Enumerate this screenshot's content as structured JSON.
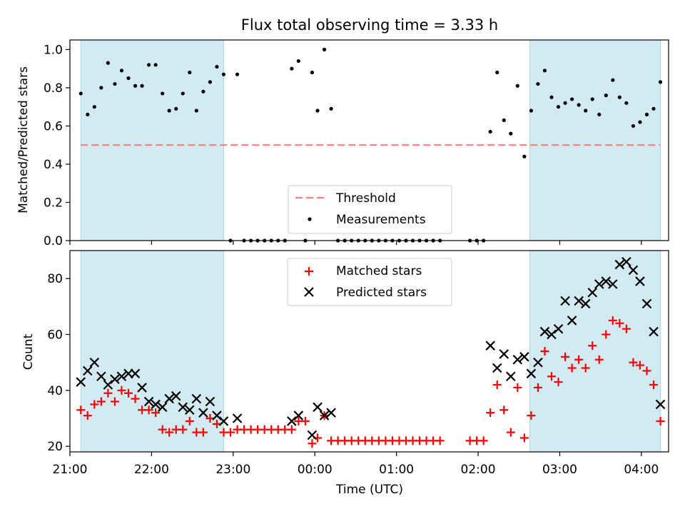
{
  "chart_data": [
    {
      "type": "scatter",
      "title": "Flux total observing time = 3.33 h",
      "ylabel": "Matched/Predicted stars",
      "xlabel": "",
      "xlim": [
        "21:00",
        "04:20"
      ],
      "ylim": [
        0,
        1.05
      ],
      "yticks": [
        "0.0",
        "0.2",
        "0.4",
        "0.6",
        "0.8",
        "1.0"
      ],
      "shaded_regions": [
        [
          "21:08",
          "22:53"
        ],
        [
          "02:38",
          "04:14"
        ]
      ],
      "shade_color": "#add8e6",
      "legend_position": "lower center",
      "threshold": {
        "name": "Threshold",
        "value": 0.5,
        "from": "21:08",
        "to": "04:14",
        "color": "#f08080"
      },
      "series": [
        {
          "name": "Measurements",
          "marker": "dot",
          "color": "#000000",
          "points": [
            [
              "21:08",
              0.77
            ],
            [
              "21:13",
              0.66
            ],
            [
              "21:18",
              0.7
            ],
            [
              "21:23",
              0.8
            ],
            [
              "21:28",
              0.93
            ],
            [
              "21:33",
              0.82
            ],
            [
              "21:38",
              0.89
            ],
            [
              "21:43",
              0.85
            ],
            [
              "21:48",
              0.81
            ],
            [
              "21:53",
              0.81
            ],
            [
              "21:58",
              0.92
            ],
            [
              "22:03",
              0.92
            ],
            [
              "22:08",
              0.77
            ],
            [
              "22:13",
              0.68
            ],
            [
              "22:18",
              0.69
            ],
            [
              "22:23",
              0.77
            ],
            [
              "22:28",
              0.88
            ],
            [
              "22:33",
              0.68
            ],
            [
              "22:38",
              0.78
            ],
            [
              "22:43",
              0.83
            ],
            [
              "22:48",
              0.91
            ],
            [
              "22:53",
              0.87
            ],
            [
              "22:58",
              0.0
            ],
            [
              "23:03",
              0.87
            ],
            [
              "23:08",
              0.0
            ],
            [
              "23:13",
              0.0
            ],
            [
              "23:18",
              0.0
            ],
            [
              "23:23",
              0.0
            ],
            [
              "23:28",
              0.0
            ],
            [
              "23:33",
              0.0
            ],
            [
              "23:38",
              0.0
            ],
            [
              "23:43",
              0.9
            ],
            [
              "23:48",
              0.94
            ],
            [
              "23:53",
              0.0
            ],
            [
              "23:58",
              0.88
            ],
            [
              "00:02",
              0.68
            ],
            [
              "00:07",
              1.0
            ],
            [
              "00:12",
              0.69
            ],
            [
              "00:17",
              0.0
            ],
            [
              "00:22",
              0.0
            ],
            [
              "00:27",
              0.0
            ],
            [
              "00:32",
              0.0
            ],
            [
              "00:37",
              0.0
            ],
            [
              "00:42",
              0.0
            ],
            [
              "00:47",
              0.0
            ],
            [
              "00:52",
              0.0
            ],
            [
              "00:57",
              0.0
            ],
            [
              "01:02",
              0.0
            ],
            [
              "01:07",
              0.0
            ],
            [
              "01:12",
              0.0
            ],
            [
              "01:17",
              0.0
            ],
            [
              "01:22",
              0.0
            ],
            [
              "01:27",
              0.0
            ],
            [
              "01:32",
              0.0
            ],
            [
              "01:54",
              0.0
            ],
            [
              "01:59",
              0.0
            ],
            [
              "02:04",
              0.0
            ],
            [
              "02:09",
              0.57
            ],
            [
              "02:14",
              0.88
            ],
            [
              "02:19",
              0.63
            ],
            [
              "02:24",
              0.56
            ],
            [
              "02:29",
              0.81
            ],
            [
              "02:34",
              0.44
            ],
            [
              "02:39",
              0.68
            ],
            [
              "02:44",
              0.82
            ],
            [
              "02:49",
              0.89
            ],
            [
              "02:54",
              0.75
            ],
            [
              "02:59",
              0.7
            ],
            [
              "03:04",
              0.72
            ],
            [
              "03:09",
              0.74
            ],
            [
              "03:14",
              0.71
            ],
            [
              "03:19",
              0.68
            ],
            [
              "03:24",
              0.74
            ],
            [
              "03:29",
              0.66
            ],
            [
              "03:34",
              0.76
            ],
            [
              "03:39",
              0.84
            ],
            [
              "03:44",
              0.75
            ],
            [
              "03:49",
              0.72
            ],
            [
              "03:54",
              0.6
            ],
            [
              "03:59",
              0.62
            ],
            [
              "04:04",
              0.66
            ],
            [
              "04:09",
              0.69
            ],
            [
              "04:14",
              0.83
            ]
          ]
        }
      ]
    },
    {
      "type": "scatter",
      "title": "",
      "ylabel": "Count",
      "xlabel": "Time (UTC)",
      "xlim": [
        "21:00",
        "04:20"
      ],
      "ylim": [
        18,
        90
      ],
      "yticks": [
        "20",
        "40",
        "60",
        "80"
      ],
      "xticks": [
        "21:00",
        "22:00",
        "23:00",
        "00:00",
        "01:00",
        "02:00",
        "03:00",
        "04:00"
      ],
      "shaded_regions": [
        [
          "21:08",
          "22:53"
        ],
        [
          "02:38",
          "04:14"
        ]
      ],
      "shade_color": "#add8e6",
      "legend_position": "upper center",
      "series": [
        {
          "name": "Matched stars",
          "marker": "plus",
          "color": "#ff0000",
          "points": [
            [
              "21:08",
              33
            ],
            [
              "21:13",
              31
            ],
            [
              "21:18",
              35
            ],
            [
              "21:23",
              36
            ],
            [
              "21:28",
              39
            ],
            [
              "21:33",
              36
            ],
            [
              "21:38",
              40
            ],
            [
              "21:43",
              39
            ],
            [
              "21:48",
              37
            ],
            [
              "21:53",
              33
            ],
            [
              "21:58",
              33
            ],
            [
              "22:03",
              32
            ],
            [
              "22:08",
              26
            ],
            [
              "22:13",
              25
            ],
            [
              "22:18",
              26
            ],
            [
              "22:23",
              26
            ],
            [
              "22:28",
              29
            ],
            [
              "22:33",
              25
            ],
            [
              "22:38",
              25
            ],
            [
              "22:43",
              30
            ],
            [
              "22:48",
              28
            ],
            [
              "22:53",
              25
            ],
            [
              "22:58",
              25
            ],
            [
              "23:03",
              26
            ],
            [
              "23:08",
              26
            ],
            [
              "23:13",
              26
            ],
            [
              "23:18",
              26
            ],
            [
              "23:23",
              26
            ],
            [
              "23:28",
              26
            ],
            [
              "23:33",
              26
            ],
            [
              "23:38",
              26
            ],
            [
              "23:43",
              26
            ],
            [
              "23:48",
              29
            ],
            [
              "23:53",
              29
            ],
            [
              "23:58",
              21
            ],
            [
              "00:02",
              23
            ],
            [
              "00:07",
              31
            ],
            [
              "00:12",
              22
            ],
            [
              "00:17",
              22
            ],
            [
              "00:22",
              22
            ],
            [
              "00:27",
              22
            ],
            [
              "00:32",
              22
            ],
            [
              "00:37",
              22
            ],
            [
              "00:42",
              22
            ],
            [
              "00:47",
              22
            ],
            [
              "00:52",
              22
            ],
            [
              "00:57",
              22
            ],
            [
              "01:02",
              22
            ],
            [
              "01:07",
              22
            ],
            [
              "01:12",
              22
            ],
            [
              "01:17",
              22
            ],
            [
              "01:22",
              22
            ],
            [
              "01:27",
              22
            ],
            [
              "01:32",
              22
            ],
            [
              "01:54",
              22
            ],
            [
              "01:59",
              22
            ],
            [
              "02:04",
              22
            ],
            [
              "02:09",
              32
            ],
            [
              "02:14",
              42
            ],
            [
              "02:19",
              33
            ],
            [
              "02:24",
              25
            ],
            [
              "02:29",
              41
            ],
            [
              "02:34",
              23
            ],
            [
              "02:39",
              31
            ],
            [
              "02:44",
              41
            ],
            [
              "02:49",
              54
            ],
            [
              "02:54",
              45
            ],
            [
              "02:59",
              43
            ],
            [
              "03:04",
              52
            ],
            [
              "03:09",
              48
            ],
            [
              "03:14",
              51
            ],
            [
              "03:19",
              48
            ],
            [
              "03:24",
              56
            ],
            [
              "03:29",
              51
            ],
            [
              "03:34",
              60
            ],
            [
              "03:39",
              65
            ],
            [
              "03:44",
              64
            ],
            [
              "03:49",
              62
            ],
            [
              "03:54",
              50
            ],
            [
              "03:59",
              49
            ],
            [
              "04:04",
              47
            ],
            [
              "04:09",
              42
            ],
            [
              "04:14",
              29
            ]
          ]
        },
        {
          "name": "Predicted stars",
          "marker": "x",
          "color": "#000000",
          "points": [
            [
              "21:08",
              43
            ],
            [
              "21:13",
              47
            ],
            [
              "21:18",
              50
            ],
            [
              "21:23",
              45
            ],
            [
              "21:28",
              42
            ],
            [
              "21:33",
              44
            ],
            [
              "21:38",
              45
            ],
            [
              "21:43",
              46
            ],
            [
              "21:48",
              46
            ],
            [
              "21:53",
              41
            ],
            [
              "21:58",
              36
            ],
            [
              "22:03",
              35
            ],
            [
              "22:08",
              34
            ],
            [
              "22:13",
              37
            ],
            [
              "22:18",
              38
            ],
            [
              "22:23",
              34
            ],
            [
              "22:28",
              33
            ],
            [
              "22:33",
              37
            ],
            [
              "22:38",
              32
            ],
            [
              "22:43",
              36
            ],
            [
              "22:48",
              31
            ],
            [
              "22:53",
              29
            ],
            [
              "23:03",
              30
            ],
            [
              "23:43",
              29
            ],
            [
              "23:48",
              31
            ],
            [
              "23:58",
              24
            ],
            [
              "00:02",
              34
            ],
            [
              "00:07",
              31
            ],
            [
              "00:12",
              32
            ],
            [
              "02:09",
              56
            ],
            [
              "02:14",
              48
            ],
            [
              "02:19",
              53
            ],
            [
              "02:24",
              45
            ],
            [
              "02:29",
              51
            ],
            [
              "02:34",
              52
            ],
            [
              "02:39",
              46
            ],
            [
              "02:44",
              50
            ],
            [
              "02:49",
              61
            ],
            [
              "02:54",
              60
            ],
            [
              "02:59",
              62
            ],
            [
              "03:04",
              72
            ],
            [
              "03:09",
              65
            ],
            [
              "03:14",
              72
            ],
            [
              "03:19",
              71
            ],
            [
              "03:24",
              75
            ],
            [
              "03:29",
              78
            ],
            [
              "03:34",
              79
            ],
            [
              "03:39",
              78
            ],
            [
              "03:44",
              85
            ],
            [
              "03:49",
              86
            ],
            [
              "03:54",
              83
            ],
            [
              "03:59",
              79
            ],
            [
              "04:04",
              71
            ],
            [
              "04:09",
              61
            ],
            [
              "04:14",
              35
            ]
          ]
        }
      ]
    }
  ]
}
